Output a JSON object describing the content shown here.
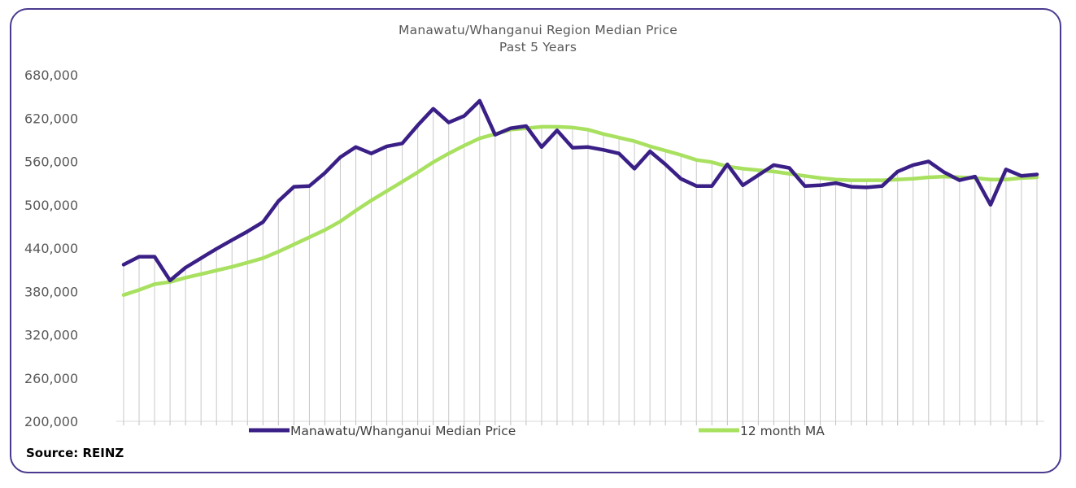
{
  "chart_data": {
    "type": "line",
    "title": "Manawatu/Whanganui Region Median Price",
    "subtitle": "Past 5 Years",
    "xlabel": "",
    "ylabel": "",
    "ylim": [
      200000,
      680000
    ],
    "yticks": [
      "200,000",
      "260,000",
      "320,000",
      "380,000",
      "440,000",
      "500,000",
      "560,000",
      "620,000",
      "680,000"
    ],
    "grid": "vertical",
    "legend_position": "bottom",
    "series": [
      {
        "name": "Manawatu/Whanganui Median Price",
        "color": "#3a1f86",
        "values": [
          417000,
          428000,
          428000,
          395000,
          413000,
          426000,
          439000,
          451000,
          463000,
          476000,
          505000,
          525000,
          526000,
          544000,
          566000,
          580000,
          571000,
          581000,
          585000,
          610000,
          633000,
          614000,
          623000,
          644000,
          597000,
          606000,
          609000,
          580000,
          603000,
          579000,
          580000,
          576000,
          571000,
          550000,
          574000,
          556000,
          536000,
          526000,
          526000,
          556000,
          527000,
          541000,
          555000,
          551000,
          526000,
          527000,
          530000,
          525000,
          524000,
          526000,
          546000,
          555000,
          560000,
          545000,
          534000,
          539000,
          500000,
          549000,
          540000,
          542000
        ]
      },
      {
        "name": "12 month MA",
        "color": "#a8e05f",
        "values": [
          375000,
          382000,
          390000,
          393000,
          399000,
          404000,
          409000,
          414000,
          420000,
          426000,
          435000,
          445000,
          455000,
          465000,
          477000,
          492000,
          506000,
          519000,
          532000,
          545000,
          559000,
          571000,
          582000,
          592000,
          598000,
          604000,
          606000,
          608000,
          608000,
          607000,
          604000,
          598000,
          593000,
          588000,
          581000,
          575000,
          569000,
          562000,
          559000,
          553000,
          550000,
          548000,
          546000,
          543000,
          540000,
          537000,
          535000,
          534000,
          534000,
          534000,
          535000,
          536000,
          538000,
          539000,
          538000,
          537000,
          535000,
          535000,
          537000,
          538000
        ]
      }
    ]
  },
  "source_label": "Source: REINZ"
}
